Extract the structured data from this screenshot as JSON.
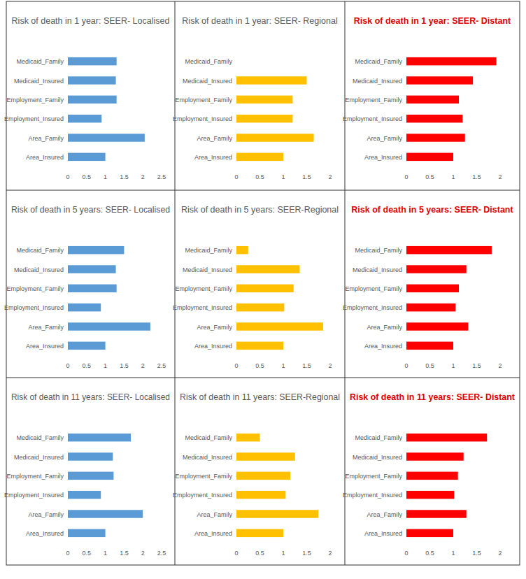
{
  "chart_data": [
    {
      "type": "bar",
      "orientation": "horizontal",
      "title": "Risk of death in 1 year: SEER- Localised",
      "color": "#5b9bd5",
      "categories": [
        "Area_Insured",
        "Area_Family",
        "Employment_Insured",
        "Employment_Family",
        "Medicaid_Insured",
        "Medicaid_Family"
      ],
      "values": [
        1.0,
        2.05,
        0.9,
        1.3,
        1.28,
        1.3
      ],
      "xlim": [
        0,
        2.5
      ],
      "xticks": [
        0,
        0.5,
        1,
        1.5,
        2,
        2.5
      ]
    },
    {
      "type": "bar",
      "orientation": "horizontal",
      "title": "Risk of death in 1 year: SEER- Regional",
      "color": "#ffc000",
      "categories": [
        "Area_Insured",
        "Area_Family",
        "Employment_Insured",
        "Employment_Family",
        "Medicaid_Insured",
        "Medicaid_Family"
      ],
      "values": [
        1.0,
        1.65,
        1.2,
        1.2,
        1.5,
        0
      ],
      "xlim": [
        0,
        2
      ],
      "xticks": [
        0,
        0.5,
        1,
        1.5,
        2
      ]
    },
    {
      "type": "bar",
      "orientation": "horizontal",
      "title": "Risk of death in 1 year: SEER- Distant",
      "color": "#ff0000",
      "categories": [
        "Area_Insured",
        "Area_Family",
        "Employment_Insured",
        "Employment_Family",
        "Medicaid_Insured",
        "Medicaid_Family"
      ],
      "values": [
        1.0,
        1.25,
        1.2,
        1.12,
        1.42,
        1.92
      ],
      "xlim": [
        0,
        2
      ],
      "xticks": [
        0,
        0.5,
        1,
        1.5,
        2
      ]
    },
    {
      "type": "bar",
      "orientation": "horizontal",
      "title": "Risk of death in 5 years: SEER- Localised",
      "color": "#5b9bd5",
      "categories": [
        "Area_Insured",
        "Area_Family",
        "Employment_Insured",
        "Employment_Family",
        "Medicaid_Insured",
        "Medicaid_Family"
      ],
      "values": [
        1.0,
        2.2,
        0.88,
        1.3,
        1.28,
        1.5
      ],
      "xlim": [
        0,
        2.5
      ],
      "xticks": [
        0,
        0.5,
        1,
        1.5,
        2,
        2.5
      ]
    },
    {
      "type": "bar",
      "orientation": "horizontal",
      "title": "Risk of death in 5 years: SEER-Regional",
      "color": "#ffc000",
      "categories": [
        "Area_Insured",
        "Area_Family",
        "Employment_Insured",
        "Employment_Family",
        "Medicaid_Insured",
        "Medicaid_Family"
      ],
      "values": [
        1.0,
        1.85,
        1.02,
        1.22,
        1.35,
        0.25
      ],
      "xlim": [
        0,
        2
      ],
      "xticks": [
        0,
        0.5,
        1,
        1.5,
        2
      ]
    },
    {
      "type": "bar",
      "orientation": "horizontal",
      "title": "Risk of death in 5 years: SEER- Distant",
      "color": "#ff0000",
      "categories": [
        "Area_Insured",
        "Area_Family",
        "Employment_Insured",
        "Employment_Family",
        "Medicaid_Insured",
        "Medicaid_Family"
      ],
      "values": [
        1.0,
        1.32,
        1.05,
        1.12,
        1.28,
        1.82
      ],
      "xlim": [
        0,
        2
      ],
      "xticks": [
        0,
        0.5,
        1,
        1.5,
        2
      ]
    },
    {
      "type": "bar",
      "orientation": "horizontal",
      "title": "Risk of death in 11 years: SEER- Localised",
      "color": "#5b9bd5",
      "categories": [
        "Area_Insured",
        "Area_Family",
        "Employment_Insured",
        "Employment_Family",
        "Medicaid_Insured",
        "Medicaid_Family"
      ],
      "values": [
        1.0,
        2.0,
        0.88,
        1.22,
        1.2,
        1.68
      ],
      "xlim": [
        0,
        2.5
      ],
      "xticks": [
        0,
        0.5,
        1,
        1.5,
        2,
        2.5
      ]
    },
    {
      "type": "bar",
      "orientation": "horizontal",
      "title": "Risk of death in 11 years: SEER-Regional",
      "color": "#ffc000",
      "categories": [
        "Area_Insured",
        "Area_Family",
        "Employment_Insured",
        "Employment_Family",
        "Medicaid_Insured",
        "Medicaid_Family"
      ],
      "values": [
        1.0,
        1.75,
        1.05,
        1.15,
        1.25,
        0.5
      ],
      "xlim": [
        0,
        2
      ],
      "xticks": [
        0,
        0.5,
        1,
        1.5,
        2
      ]
    },
    {
      "type": "bar",
      "orientation": "horizontal",
      "title": "Risk of death in 11 years: SEER- Distant",
      "color": "#ff0000",
      "categories": [
        "Area_Insured",
        "Area_Family",
        "Employment_Insured",
        "Employment_Family",
        "Medicaid_Insured",
        "Medicaid_Family"
      ],
      "values": [
        1.0,
        1.28,
        1.02,
        1.1,
        1.22,
        1.72
      ],
      "xlim": [
        0,
        2
      ],
      "xticks": [
        0,
        0.5,
        1,
        1.5,
        2
      ]
    }
  ]
}
